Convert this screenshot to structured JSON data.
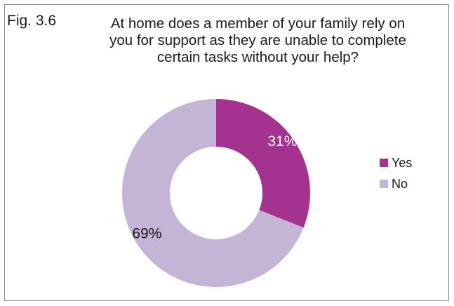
{
  "figure": {
    "label": "Fig. 3.6",
    "title_lines": [
      "At home does a member of your family rely on",
      "you for support as they are unable to complete",
      "certain tasks without your help?"
    ]
  },
  "chart_data": {
    "type": "pie",
    "title": "At home does a member of your family rely on you for support as they are unable to complete certain tasks without your help?",
    "donut": true,
    "categories": [
      "Yes",
      "No"
    ],
    "values": [
      31,
      69
    ],
    "value_labels": [
      "31%",
      "69%"
    ],
    "unit": "%",
    "colors": [
      "#a3338e",
      "#c4b5d6"
    ],
    "legend_position": "right"
  }
}
